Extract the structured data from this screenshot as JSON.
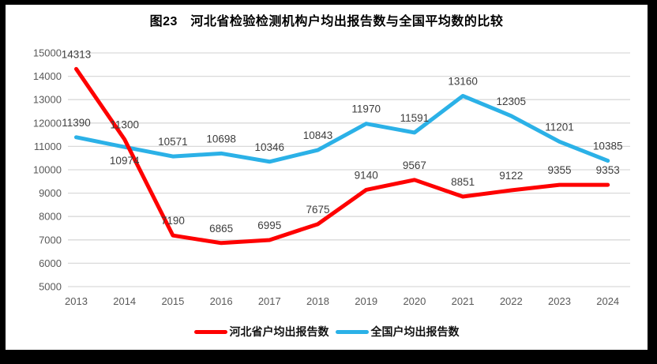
{
  "chart_data": {
    "type": "line",
    "title": "图23　河北省检验检测机构户均出报告数与全国平均数的比较",
    "categories": [
      "2013",
      "2014",
      "2015",
      "2016",
      "2017",
      "2018",
      "2019",
      "2020",
      "2021",
      "2022",
      "2023",
      "2024"
    ],
    "series": [
      {
        "name": "河北省户均出报告数",
        "color": "#fe0000",
        "values": [
          14313,
          11300,
          7190,
          6865,
          6995,
          7675,
          9140,
          9567,
          8851,
          9122,
          9355,
          9353
        ]
      },
      {
        "name": "全国户均出报告数",
        "color": "#2bb1e7",
        "values": [
          11390,
          10974,
          10571,
          10698,
          10346,
          10843,
          11970,
          11591,
          13160,
          12305,
          11201,
          10385
        ]
      }
    ],
    "ylim": [
      5000,
      15000
    ],
    "ytick_step": 1000,
    "yticks": [
      5000,
      6000,
      7000,
      8000,
      9000,
      10000,
      11000,
      12000,
      13000,
      14000,
      15000
    ],
    "grid": "horizontal-only",
    "legend_position": "bottom",
    "data_labels": "shown-above-points",
    "colors": {
      "gridline": "#d9d9d9",
      "axis_text": "#595959",
      "data_label": "#3d3d3d",
      "frame_border": "#000000",
      "background": "#ffffff"
    }
  }
}
